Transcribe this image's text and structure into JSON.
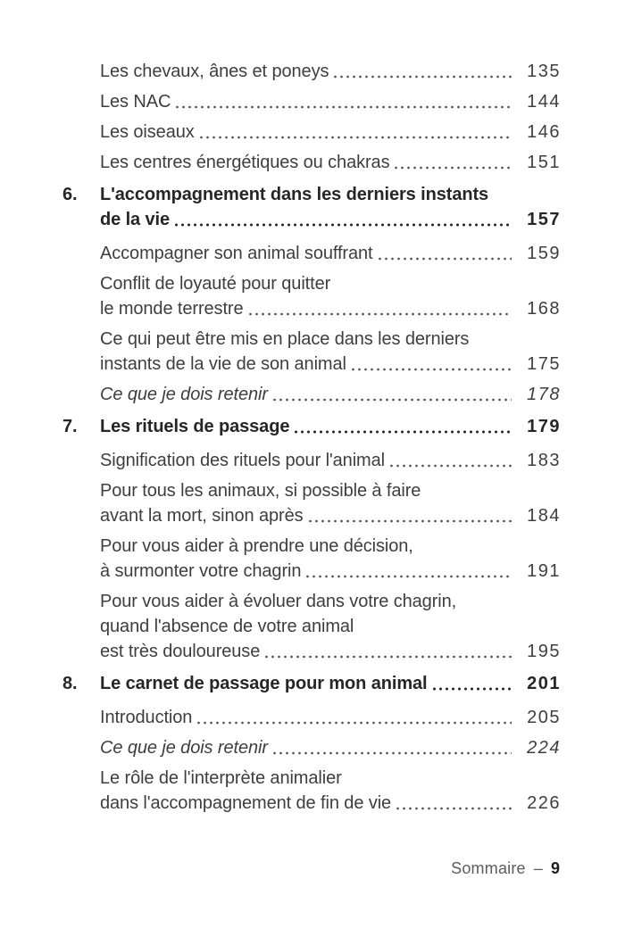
{
  "colors": {
    "body_text": "#3e3e3e",
    "chapter_text": "#262626",
    "footer_label": "#5c5c5c",
    "background": "#ffffff"
  },
  "toc": {
    "entries": [
      {
        "type": "sub",
        "lines": [
          "Les chevaux, ânes et poneys"
        ],
        "page": "135"
      },
      {
        "type": "sub",
        "lines": [
          "Les NAC"
        ],
        "page": "144"
      },
      {
        "type": "sub",
        "lines": [
          "Les oiseaux"
        ],
        "page": "146"
      },
      {
        "type": "sub",
        "lines": [
          "Les centres énergétiques ou chakras"
        ],
        "page": "151"
      },
      {
        "type": "chapter",
        "number": "6.",
        "lines": [
          "L'accompagnement dans les derniers instants",
          "de la vie"
        ],
        "page": "157"
      },
      {
        "type": "sub",
        "lines": [
          "Accompagner son animal souffrant"
        ],
        "page": "159"
      },
      {
        "type": "sub",
        "lines": [
          "Conflit de loyauté pour quitter",
          "le monde terrestre"
        ],
        "page": "168"
      },
      {
        "type": "sub",
        "lines": [
          "Ce qui peut être mis en place dans les derniers",
          "instants de la vie de son animal"
        ],
        "page": "175"
      },
      {
        "type": "note",
        "lines": [
          "Ce que je dois retenir"
        ],
        "page": "178"
      },
      {
        "type": "chapter",
        "number": "7.",
        "lines": [
          "Les rituels de passage"
        ],
        "page": "179"
      },
      {
        "type": "sub",
        "lines": [
          "Signification des rituels pour l'animal"
        ],
        "page": "183"
      },
      {
        "type": "sub",
        "lines": [
          "Pour tous les animaux, si possible à faire",
          "avant la mort, sinon après"
        ],
        "page": "184"
      },
      {
        "type": "sub",
        "lines": [
          "Pour vous aider à prendre une décision,",
          "à surmonter votre chagrin"
        ],
        "page": "191"
      },
      {
        "type": "sub",
        "lines": [
          "Pour vous aider à évoluer dans votre chagrin,",
          "quand l'absence de votre animal",
          "est très douloureuse"
        ],
        "page": "195"
      },
      {
        "type": "chapter",
        "number": "8.",
        "lines": [
          "Le carnet de passage pour mon animal"
        ],
        "page": "201"
      },
      {
        "type": "sub",
        "lines": [
          "Introduction"
        ],
        "page": "205"
      },
      {
        "type": "note",
        "lines": [
          "Ce que je dois retenir"
        ],
        "page": "224"
      },
      {
        "type": "sub",
        "lines": [
          "Le rôle de l'interprète animalier",
          "dans l'accompagnement de fin de vie"
        ],
        "page": "226"
      }
    ]
  },
  "footer": {
    "section_label": "Sommaire",
    "separator": "–",
    "page_number": "9"
  }
}
